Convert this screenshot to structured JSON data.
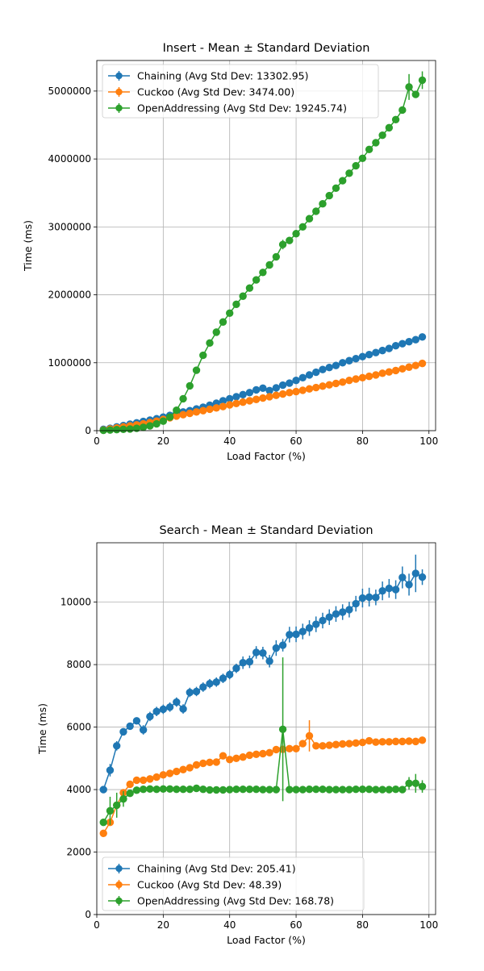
{
  "chart_data": [
    {
      "type": "line",
      "title": "Insert - Mean ± Standard Deviation",
      "xlabel": "Load Factor (%)",
      "ylabel": "Time (ms)",
      "xlim": [
        0,
        102
      ],
      "ylim": [
        0,
        5450000
      ],
      "xticks": [
        0,
        20,
        40,
        60,
        80,
        100
      ],
      "yticks": [
        0,
        1000000,
        2000000,
        3000000,
        4000000,
        5000000
      ],
      "grid": true,
      "legend_position": "upper-left",
      "x": [
        2,
        4,
        6,
        8,
        10,
        12,
        14,
        16,
        18,
        20,
        22,
        24,
        26,
        28,
        30,
        32,
        34,
        36,
        38,
        40,
        42,
        44,
        46,
        48,
        50,
        52,
        54,
        56,
        58,
        60,
        62,
        64,
        66,
        68,
        70,
        72,
        74,
        76,
        78,
        80,
        82,
        84,
        86,
        88,
        90,
        92,
        94,
        96,
        98
      ],
      "series": [
        {
          "name": "Chaining (Avg Std Dev: 13302.95)",
          "color": "#1f77b4",
          "values": [
            20000,
            35000,
            55000,
            75000,
            95000,
            115000,
            135000,
            155000,
            175000,
            200000,
            225000,
            255000,
            275000,
            295000,
            320000,
            345000,
            375000,
            405000,
            440000,
            470000,
            500000,
            530000,
            560000,
            600000,
            625000,
            590000,
            630000,
            670000,
            700000,
            740000,
            780000,
            820000,
            860000,
            900000,
            930000,
            960000,
            1000000,
            1030000,
            1060000,
            1090000,
            1120000,
            1150000,
            1180000,
            1210000,
            1250000,
            1280000,
            1310000,
            1340000,
            1380000
          ],
          "errors": [
            5000,
            5000,
            5000,
            5000,
            5000,
            5000,
            5000,
            5000,
            5000,
            5000,
            5000,
            5000,
            5000,
            5000,
            5000,
            5000,
            5000,
            5000,
            5000,
            5000,
            5000,
            5000,
            5000,
            5000,
            5000,
            5000,
            5000,
            5000,
            5000,
            5000,
            5000,
            5000,
            5000,
            5000,
            5000,
            5000,
            5000,
            5000,
            5000,
            5000,
            5000,
            5000,
            5000,
            5000,
            5000,
            5000,
            5000,
            5000,
            5000
          ]
        },
        {
          "name": "Cuckoo (Avg Std Dev: 3474.00)",
          "color": "#ff7f0e",
          "values": [
            10000,
            25000,
            40000,
            55000,
            70000,
            85000,
            100000,
            120000,
            140000,
            165000,
            190000,
            215000,
            235000,
            255000,
            275000,
            295000,
            315000,
            335000,
            355000,
            380000,
            400000,
            420000,
            440000,
            460000,
            480000,
            500000,
            520000,
            540000,
            560000,
            575000,
            595000,
            615000,
            635000,
            655000,
            675000,
            695000,
            715000,
            740000,
            760000,
            780000,
            800000,
            820000,
            845000,
            865000,
            885000,
            910000,
            935000,
            960000,
            990000
          ],
          "errors": [
            2000,
            2000,
            2000,
            2000,
            2000,
            2000,
            2000,
            2000,
            2000,
            2000,
            2000,
            2000,
            2000,
            2000,
            2000,
            2000,
            2000,
            2000,
            2000,
            2000,
            2000,
            2000,
            2000,
            2000,
            2000,
            2000,
            2000,
            2000,
            2000,
            2000,
            2000,
            2000,
            2000,
            2000,
            2000,
            2000,
            2000,
            2000,
            2000,
            2000,
            2000,
            2000,
            2000,
            2000,
            2000,
            2000,
            2000,
            2000,
            2000
          ]
        },
        {
          "name": "OpenAddressing (Avg Std Dev: 19245.74)",
          "color": "#2ca02c",
          "values": [
            5000,
            10000,
            15000,
            20000,
            25000,
            35000,
            50000,
            70000,
            100000,
            140000,
            200000,
            300000,
            470000,
            660000,
            890000,
            1110000,
            1290000,
            1450000,
            1600000,
            1730000,
            1860000,
            1980000,
            2100000,
            2220000,
            2330000,
            2440000,
            2560000,
            2740000,
            2800000,
            2900000,
            3000000,
            3120000,
            3230000,
            3340000,
            3460000,
            3570000,
            3680000,
            3790000,
            3900000,
            4010000,
            4140000,
            4240000,
            4350000,
            4460000,
            4580000,
            4720000,
            5060000,
            4950000,
            5160000
          ],
          "errors": [
            3000,
            3000,
            3000,
            3000,
            3000,
            3000,
            3000,
            3000,
            3000,
            3000,
            3000,
            3000,
            3000,
            3000,
            3000,
            3000,
            3000,
            3000,
            3000,
            3000,
            3000,
            3000,
            3000,
            3000,
            3000,
            3000,
            3000,
            70000,
            15000,
            10000,
            10000,
            10000,
            10000,
            10000,
            10000,
            10000,
            10000,
            10000,
            10000,
            10000,
            10000,
            10000,
            10000,
            10000,
            10000,
            10000,
            190000,
            50000,
            130000
          ]
        }
      ]
    },
    {
      "type": "line",
      "title": "Search - Mean ± Standard Deviation",
      "xlabel": "Load Factor (%)",
      "ylabel": "Time (ms)",
      "xlim": [
        0,
        102
      ],
      "ylim": [
        0,
        11900
      ],
      "xticks": [
        0,
        20,
        40,
        60,
        80,
        100
      ],
      "yticks": [
        0,
        2000,
        4000,
        6000,
        8000,
        10000
      ],
      "grid": true,
      "legend_position": "lower-left",
      "x": [
        2,
        4,
        6,
        8,
        10,
        12,
        14,
        16,
        18,
        20,
        22,
        24,
        26,
        28,
        30,
        32,
        34,
        36,
        38,
        40,
        42,
        44,
        46,
        48,
        50,
        52,
        54,
        56,
        58,
        60,
        62,
        64,
        66,
        68,
        70,
        72,
        74,
        76,
        78,
        80,
        82,
        84,
        86,
        88,
        90,
        92,
        94,
        96,
        98
      ],
      "series": [
        {
          "name": "Chaining (Avg Std Dev: 205.41)",
          "color": "#1f77b4",
          "values": [
            4000,
            4620,
            5400,
            5850,
            6030,
            6200,
            5910,
            6340,
            6500,
            6570,
            6640,
            6800,
            6580,
            7110,
            7140,
            7280,
            7390,
            7440,
            7560,
            7680,
            7880,
            8060,
            8090,
            8390,
            8370,
            8110,
            8530,
            8620,
            8960,
            8970,
            9060,
            9170,
            9290,
            9410,
            9520,
            9620,
            9680,
            9760,
            9950,
            10130,
            10160,
            10150,
            10360,
            10440,
            10400,
            10790,
            10560,
            10920,
            10800
          ],
          "errors": [
            50,
            200,
            150,
            100,
            100,
            100,
            150,
            150,
            150,
            150,
            150,
            150,
            150,
            150,
            150,
            150,
            150,
            150,
            150,
            150,
            150,
            200,
            200,
            200,
            200,
            200,
            250,
            200,
            250,
            250,
            250,
            250,
            250,
            250,
            250,
            250,
            250,
            250,
            250,
            300,
            300,
            250,
            300,
            300,
            300,
            350,
            350,
            600,
            250
          ]
        },
        {
          "name": "Cuckoo (Avg Std Dev: 48.39)",
          "color": "#ff7f0e",
          "values": [
            2600,
            2950,
            3500,
            3900,
            4170,
            4300,
            4300,
            4340,
            4400,
            4470,
            4520,
            4580,
            4640,
            4700,
            4790,
            4840,
            4870,
            4880,
            5080,
            4960,
            5000,
            5040,
            5100,
            5130,
            5150,
            5180,
            5280,
            5290,
            5310,
            5310,
            5470,
            5720,
            5400,
            5400,
            5420,
            5440,
            5460,
            5470,
            5490,
            5510,
            5560,
            5520,
            5530,
            5530,
            5540,
            5540,
            5550,
            5540,
            5580
          ],
          "errors": [
            30,
            30,
            30,
            30,
            30,
            30,
            30,
            30,
            30,
            30,
            30,
            30,
            30,
            30,
            30,
            30,
            30,
            30,
            30,
            30,
            30,
            30,
            30,
            30,
            30,
            30,
            30,
            30,
            30,
            30,
            30,
            500,
            30,
            30,
            30,
            30,
            30,
            30,
            30,
            30,
            30,
            30,
            30,
            30,
            30,
            30,
            30,
            30,
            30
          ]
        },
        {
          "name": "OpenAddressing (Avg Std Dev: 168.78)",
          "color": "#2ca02c",
          "values": [
            2950,
            3320,
            3500,
            3700,
            3880,
            3980,
            4010,
            4020,
            4010,
            4020,
            4020,
            4010,
            4010,
            4010,
            4040,
            4010,
            3990,
            3990,
            3990,
            4000,
            4010,
            4010,
            4010,
            4010,
            4000,
            4000,
            4000,
            5930,
            4000,
            4000,
            4000,
            4010,
            4010,
            4010,
            4000,
            4000,
            4000,
            4000,
            4010,
            4010,
            4010,
            4000,
            4000,
            4000,
            4010,
            4000,
            4200,
            4200,
            4100
          ],
          "errors": [
            100,
            450,
            400,
            250,
            100,
            50,
            50,
            50,
            50,
            50,
            50,
            50,
            50,
            50,
            50,
            50,
            50,
            50,
            50,
            50,
            50,
            50,
            50,
            50,
            50,
            50,
            50,
            2300,
            50,
            50,
            50,
            50,
            50,
            50,
            50,
            50,
            50,
            50,
            50,
            50,
            50,
            50,
            50,
            50,
            50,
            50,
            200,
            300,
            200
          ]
        }
      ]
    }
  ]
}
